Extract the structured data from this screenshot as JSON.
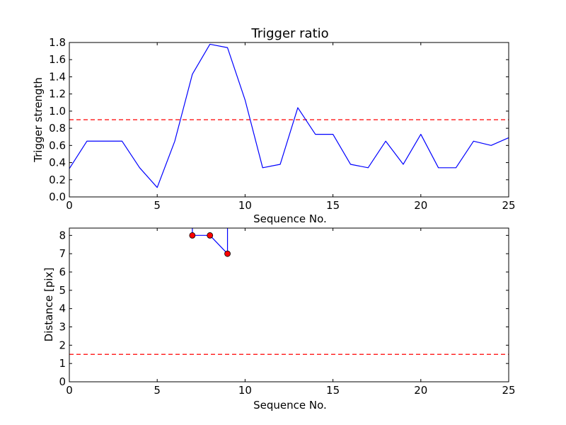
{
  "chart_data": [
    {
      "type": "line",
      "title": "Trigger ratio",
      "xlabel": "Sequence No.",
      "ylabel": "Trigger strength",
      "xlim": [
        0,
        25
      ],
      "ylim": [
        0,
        1.8
      ],
      "xticks": [
        "0",
        "5",
        "10",
        "15",
        "20",
        "25"
      ],
      "yticks": [
        "0.0",
        "0.2",
        "0.4",
        "0.6",
        "0.8",
        "1.0",
        "1.2",
        "1.4",
        "1.6",
        "1.8"
      ],
      "grid": false,
      "series": [
        {
          "color": "#0000ff",
          "style": "solid",
          "x": [
            0,
            1,
            2,
            3,
            4,
            5,
            6,
            7,
            8,
            9,
            10,
            11,
            12,
            13,
            14,
            15,
            16,
            17,
            18,
            19,
            20,
            21,
            22,
            23,
            24,
            25
          ],
          "y": [
            0.33,
            0.65,
            0.65,
            0.65,
            0.34,
            0.11,
            0.65,
            1.43,
            1.78,
            1.74,
            1.13,
            0.34,
            0.38,
            1.04,
            0.73,
            0.73,
            0.38,
            0.34,
            0.65,
            0.38,
            0.73,
            0.34,
            0.34,
            0.65,
            0.6,
            0.69
          ]
        }
      ],
      "reference_lines": [
        {
          "axis": "y",
          "value": 0.9,
          "color": "#ff0000",
          "style": "dashed"
        }
      ]
    },
    {
      "type": "line",
      "title": "",
      "xlabel": "Sequence No.",
      "ylabel": "Distance [pix]",
      "xlim": [
        0,
        25
      ],
      "ylim": [
        0,
        8.4
      ],
      "xticks": [
        "0",
        "5",
        "10",
        "15",
        "20",
        "25"
      ],
      "yticks": [
        "0",
        "1",
        "2",
        "3",
        "4",
        "5",
        "6",
        "7",
        "8"
      ],
      "grid": false,
      "series": [
        {
          "color": "#0000ff",
          "marker_color": "#ff0000",
          "style": "solid",
          "x": [
            7,
            7,
            8,
            9,
            9
          ],
          "y": [
            8.4,
            8,
            8,
            7,
            8.4
          ],
          "markers_at": [
            1,
            2,
            3
          ]
        }
      ],
      "reference_lines": [
        {
          "axis": "y",
          "value": 1.5,
          "color": "#ff0000",
          "style": "dashed"
        }
      ]
    }
  ]
}
